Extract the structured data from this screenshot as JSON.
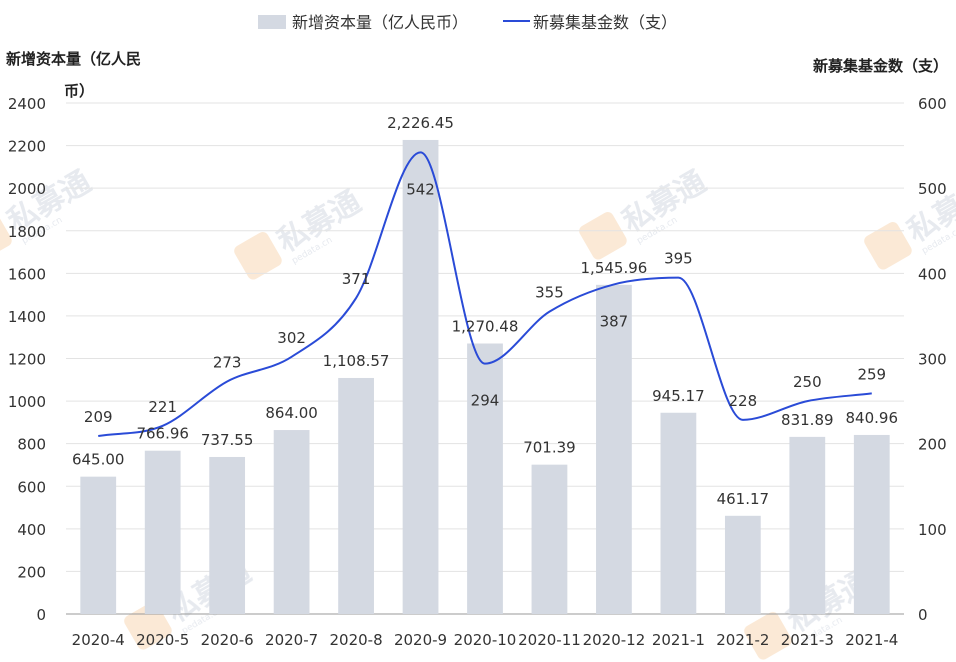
{
  "chart_data": {
    "type": "bar",
    "categories": [
      "2020-4",
      "2020-5",
      "2020-6",
      "2020-7",
      "2020-8",
      "2020-9",
      "2020-10",
      "2020-11",
      "2020-12",
      "2021-1",
      "2021-2",
      "2021-3",
      "2021-4"
    ],
    "series": [
      {
        "name": "新增资本量（亿人民币）",
        "type": "bar",
        "axis": "left",
        "values": [
          645.0,
          766.96,
          737.55,
          864.0,
          1108.57,
          2226.45,
          1270.48,
          701.39,
          1545.96,
          945.17,
          461.17,
          831.89,
          840.96
        ],
        "labels": [
          "645.00",
          "766.96",
          "737.55",
          "864.00",
          "1,108.57",
          "2,226.45",
          "1,270.48",
          "701.39",
          "1,545.96",
          "945.17",
          "461.17",
          "831.89",
          "840.96"
        ],
        "color": "#d4d9e2"
      },
      {
        "name": "新募集基金数（支）",
        "type": "line",
        "axis": "right",
        "values": [
          209,
          221,
          273,
          302,
          371,
          542,
          294,
          355,
          387,
          395,
          228,
          250,
          259
        ],
        "color": "#2a4bd7"
      }
    ],
    "yleft_label_line1": "新增资本量（亿人民",
    "yleft_label_line2": "币）",
    "yright_label": "新募集基金数（支）",
    "yleft_ticks": [
      "0",
      "200",
      "400",
      "600",
      "800",
      "1000",
      "1200",
      "1400",
      "1600",
      "1800",
      "2000",
      "2200",
      "2400"
    ],
    "yright_ticks": [
      "0",
      "100",
      "200",
      "300",
      "400",
      "500",
      "600"
    ],
    "ylim_left": [
      0,
      2400
    ],
    "ylim_right": [
      0,
      600
    ],
    "legend_position": "top-center",
    "grid": true
  },
  "watermark": {
    "text": "私募通",
    "subtext": "pedata.cn"
  }
}
